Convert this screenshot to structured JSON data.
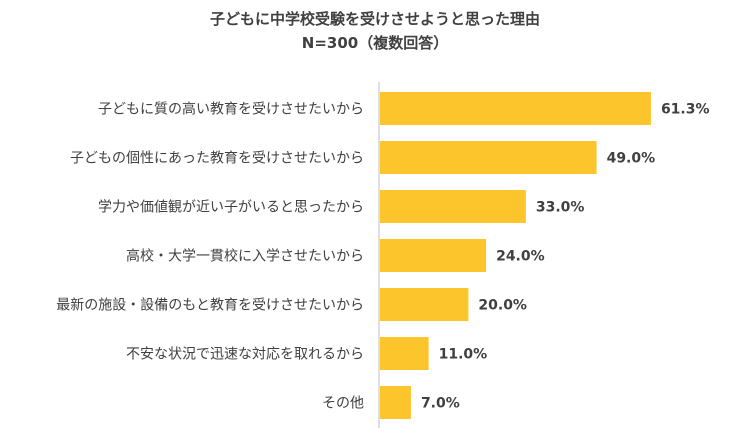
{
  "chart_data": {
    "type": "bar",
    "orientation": "horizontal",
    "title": "子どもに中学校受験を受けさせようと思った理由",
    "subtitle": "N=300（複数回答）",
    "categories": [
      "子どもに質の高い教育を受けさせたいから",
      "子どもの個性にあった教育を受けさせたいから",
      "学力や価値観が近い子がいると思ったから",
      "高校・大学一貫校に入学させたいから",
      "最新の施設・設備のもと教育を受けさせたいから",
      "不安な状況で迅速な対応を取れるから",
      "その他"
    ],
    "values": [
      61.3,
      49.0,
      33.0,
      24.0,
      20.0,
      11.0,
      7.0
    ],
    "value_labels": [
      "61.3%",
      "49.0%",
      "33.0%",
      "24.0%",
      "20.0%",
      "11.0%",
      "7.0%"
    ],
    "xlim": [
      0,
      70
    ],
    "grid": false,
    "legend": "none",
    "bar_color": "#fbc52b"
  }
}
